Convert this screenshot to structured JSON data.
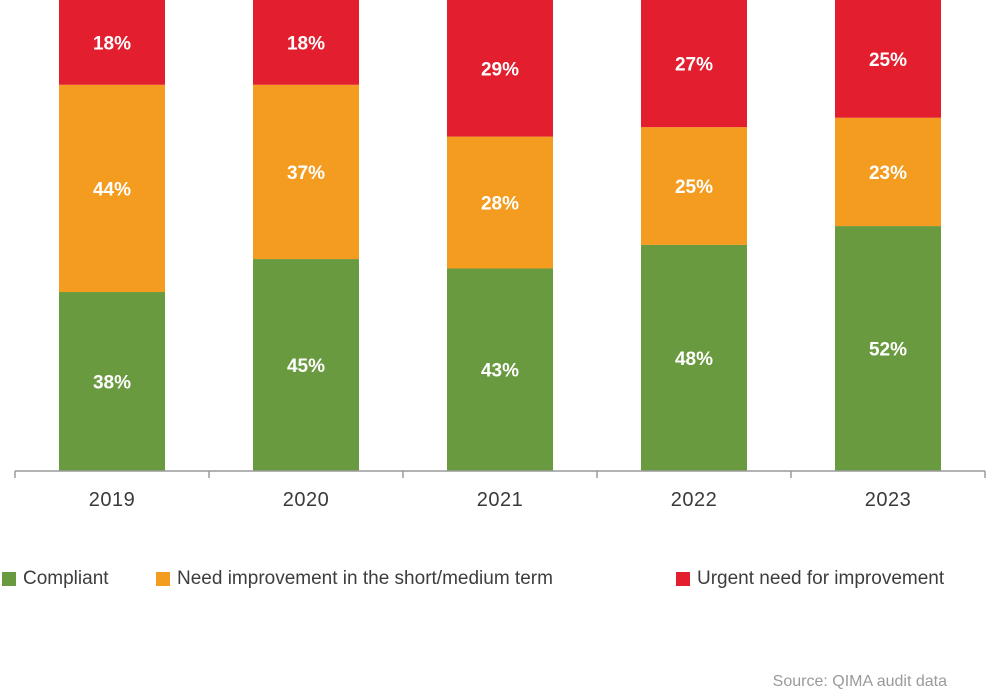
{
  "chart_data": {
    "type": "bar",
    "stacked": true,
    "categories": [
      "2019",
      "2020",
      "2021",
      "2022",
      "2023"
    ],
    "ylim": [
      0,
      100
    ],
    "series": [
      {
        "name": "Compliant",
        "color": "#6a9a3f",
        "values": [
          38,
          45,
          43,
          48,
          52
        ]
      },
      {
        "name": "Need improvement in the short/medium term",
        "color": "#f39c1f",
        "values": [
          44,
          37,
          28,
          25,
          23
        ]
      },
      {
        "name": "Urgent need for improvement",
        "color": "#e31e2f",
        "values": [
          18,
          18,
          29,
          27,
          25
        ]
      }
    ],
    "legend_position": "bottom",
    "grid": false
  },
  "source_note": "Source: QIMA audit data"
}
